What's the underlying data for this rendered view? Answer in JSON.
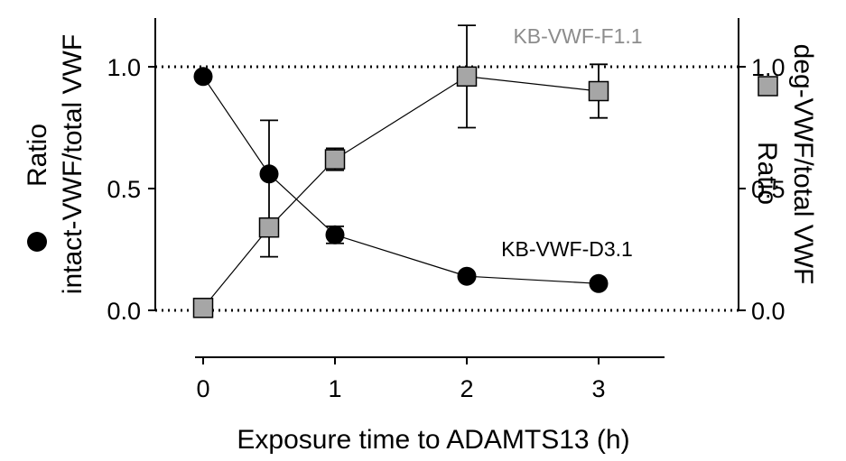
{
  "chart_data": {
    "type": "line",
    "x_ticks": [
      "0",
      "1",
      "2",
      "3"
    ],
    "xlabel": "Exposure time to ADAMTS13 (h)",
    "xlim": [
      -0.05,
      3.5
    ],
    "y_left": {
      "label_line1": "Ratio",
      "label_line2": "intact-VWF/total VWF",
      "symbol": "filled-circle",
      "ticks": [
        "0.0",
        "0.5",
        "1.0"
      ],
      "lim": [
        0,
        1.2
      ]
    },
    "y_right": {
      "label_line1": "Ratio",
      "label_line2": "deg-VWF/total VWF",
      "symbol": "gray-square",
      "ticks": [
        "0.0",
        "0.5",
        "1.0"
      ],
      "lim": [
        0,
        1.2
      ]
    },
    "reference_lines": [
      0,
      1.0
    ],
    "series": [
      {
        "name": "KB-VWF-D3.1",
        "marker": "circle",
        "color": "#000000",
        "points": [
          {
            "x": 0,
            "y": 0.96,
            "err": 0
          },
          {
            "x": 0.5,
            "y": 0.56,
            "err": 0
          },
          {
            "x": 1,
            "y": 0.31,
            "err": 0.035
          },
          {
            "x": 2,
            "y": 0.14,
            "err": 0
          },
          {
            "x": 3,
            "y": 0.11,
            "err": 0
          }
        ]
      },
      {
        "name": "KB-VWF-F1.1",
        "marker": "square",
        "color": "#a6a6a6",
        "points": [
          {
            "x": 0,
            "y": 0.01,
            "err": 0
          },
          {
            "x": 0.5,
            "y": 0.34,
            "err_low": 0.12,
            "err_high": 0.44
          },
          {
            "x": 1,
            "y": 0.62,
            "err": 0.045
          },
          {
            "x": 2,
            "y": 0.96,
            "err": 0.21
          },
          {
            "x": 3,
            "y": 0.9,
            "err": 0.11
          }
        ]
      }
    ],
    "grid": false
  }
}
